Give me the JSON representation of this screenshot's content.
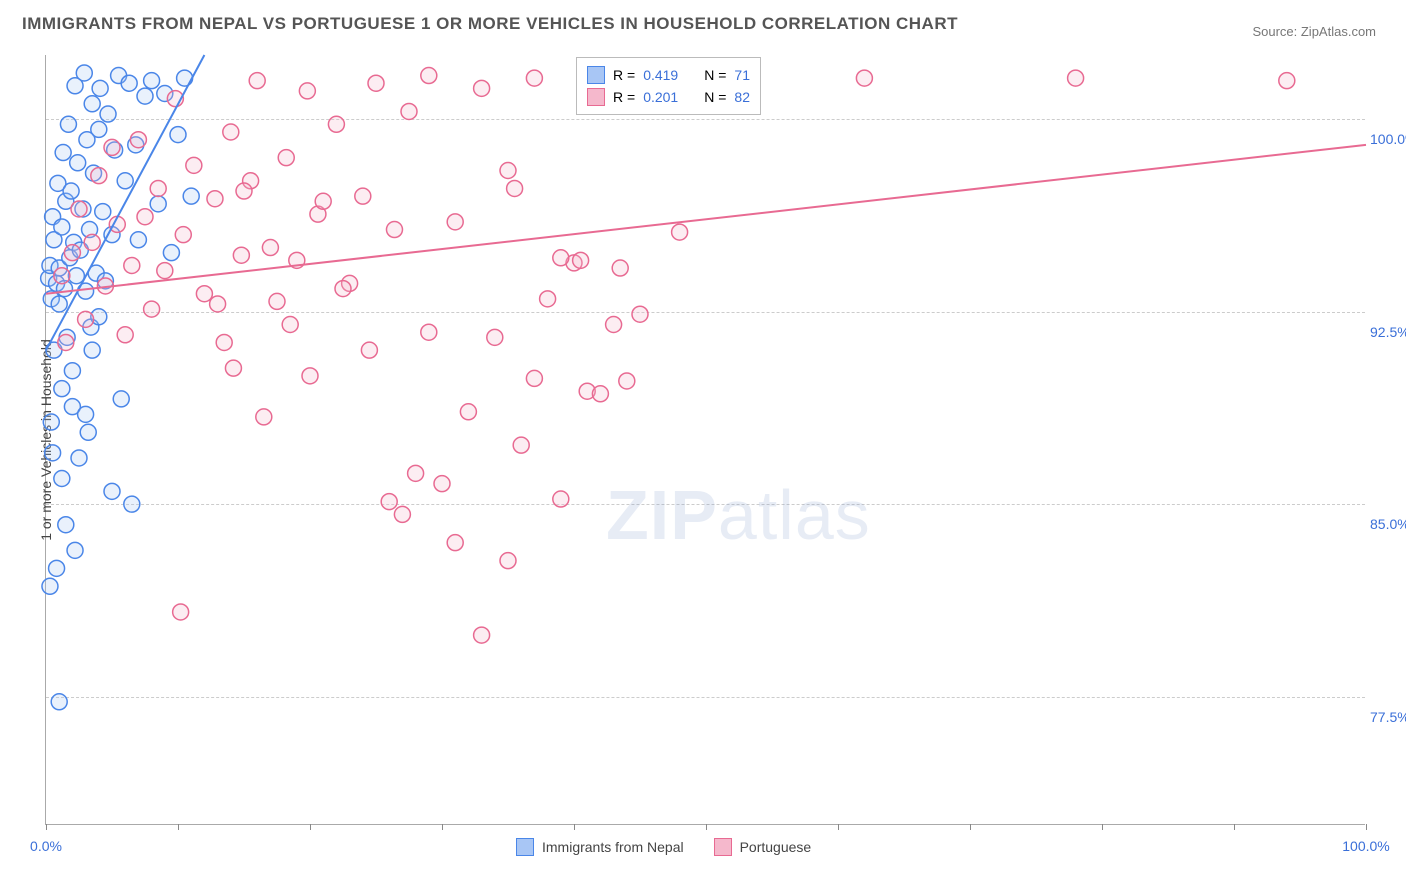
{
  "title": "IMMIGRANTS FROM NEPAL VS PORTUGUESE 1 OR MORE VEHICLES IN HOUSEHOLD CORRELATION CHART",
  "source": "Source: ZipAtlas.com",
  "watermark": {
    "bold": "ZIP",
    "light": "atlas"
  },
  "chart": {
    "type": "scatter",
    "ylabel": "1 or more Vehicles in Household",
    "xlim": [
      0,
      100
    ],
    "ylim": [
      72.5,
      102.5
    ],
    "x_ticks": [
      0,
      10,
      20,
      30,
      40,
      50,
      60,
      70,
      80,
      90,
      100
    ],
    "x_tick_labels": {
      "0": "0.0%",
      "100": "100.0%"
    },
    "y_gridlines": [
      77.5,
      85.0,
      92.5,
      100.0
    ],
    "y_tick_labels": [
      "77.5%",
      "85.0%",
      "92.5%",
      "100.0%"
    ],
    "grid_color": "#cccccc",
    "axis_color": "#aaaaaa",
    "tick_label_color": "#3a6fd8",
    "background_color": "#ffffff",
    "marker_radius": 8,
    "marker_stroke_width": 1.5,
    "marker_fill_opacity": 0.25,
    "line_width": 2,
    "series": [
      {
        "name": "Immigrants from Nepal",
        "color_stroke": "#4a86e8",
        "color_fill": "#a8c6f5",
        "R": 0.419,
        "N": 71,
        "trend": {
          "x1": 0,
          "y1": 91.0,
          "x2": 12,
          "y2": 102.5
        },
        "points": [
          [
            0.2,
            93.8
          ],
          [
            0.3,
            94.3
          ],
          [
            0.4,
            93.0
          ],
          [
            0.5,
            96.2
          ],
          [
            0.6,
            95.3
          ],
          [
            0.6,
            91.0
          ],
          [
            0.8,
            93.6
          ],
          [
            0.9,
            97.5
          ],
          [
            1.0,
            94.2
          ],
          [
            1.0,
            92.8
          ],
          [
            1.2,
            95.8
          ],
          [
            1.2,
            89.5
          ],
          [
            1.3,
            98.7
          ],
          [
            1.4,
            93.4
          ],
          [
            1.5,
            96.8
          ],
          [
            1.6,
            91.5
          ],
          [
            1.7,
            99.8
          ],
          [
            1.8,
            94.6
          ],
          [
            1.9,
            97.2
          ],
          [
            2.0,
            90.2
          ],
          [
            2.1,
            95.2
          ],
          [
            2.2,
            101.3
          ],
          [
            2.3,
            93.9
          ],
          [
            2.4,
            98.3
          ],
          [
            2.5,
            86.8
          ],
          [
            2.6,
            94.9
          ],
          [
            2.8,
            96.5
          ],
          [
            2.9,
            101.8
          ],
          [
            3.0,
            93.3
          ],
          [
            3.1,
            99.2
          ],
          [
            3.2,
            87.8
          ],
          [
            3.3,
            95.7
          ],
          [
            3.4,
            91.9
          ],
          [
            3.5,
            100.6
          ],
          [
            3.6,
            97.9
          ],
          [
            3.8,
            94.0
          ],
          [
            4.0,
            99.6
          ],
          [
            4.1,
            101.2
          ],
          [
            4.3,
            96.4
          ],
          [
            4.5,
            93.7
          ],
          [
            4.7,
            100.2
          ],
          [
            5.0,
            95.5
          ],
          [
            5.0,
            85.5
          ],
          [
            5.2,
            98.8
          ],
          [
            5.5,
            101.7
          ],
          [
            5.7,
            89.1
          ],
          [
            6.0,
            97.6
          ],
          [
            6.3,
            101.4
          ],
          [
            6.5,
            85.0
          ],
          [
            6.8,
            99.0
          ],
          [
            7.0,
            95.3
          ],
          [
            7.5,
            100.9
          ],
          [
            8.0,
            101.5
          ],
          [
            8.5,
            96.7
          ],
          [
            9.0,
            101.0
          ],
          [
            9.5,
            94.8
          ],
          [
            10.0,
            99.4
          ],
          [
            10.5,
            101.6
          ],
          [
            11.0,
            97.0
          ],
          [
            0.3,
            81.8
          ],
          [
            0.4,
            88.2
          ],
          [
            0.5,
            87.0
          ],
          [
            0.8,
            82.5
          ],
          [
            1.0,
            77.3
          ],
          [
            1.2,
            86.0
          ],
          [
            1.5,
            84.2
          ],
          [
            2.0,
            88.8
          ],
          [
            2.2,
            83.2
          ],
          [
            3.0,
            88.5
          ],
          [
            3.5,
            91.0
          ],
          [
            4.0,
            92.3
          ]
        ]
      },
      {
        "name": "Portuguese",
        "color_stroke": "#e86a92",
        "color_fill": "#f5b8cc",
        "R": 0.201,
        "N": 82,
        "trend": {
          "x1": 0,
          "y1": 93.2,
          "x2": 100,
          "y2": 99.0
        },
        "points": [
          [
            1.2,
            93.9
          ],
          [
            1.5,
            91.3
          ],
          [
            2.0,
            94.8
          ],
          [
            2.5,
            96.5
          ],
          [
            3.0,
            92.2
          ],
          [
            3.5,
            95.2
          ],
          [
            4.0,
            97.8
          ],
          [
            4.5,
            93.5
          ],
          [
            5.0,
            98.9
          ],
          [
            5.4,
            95.9
          ],
          [
            6.0,
            91.6
          ],
          [
            6.5,
            94.3
          ],
          [
            7.0,
            99.2
          ],
          [
            7.5,
            96.2
          ],
          [
            8.0,
            92.6
          ],
          [
            8.5,
            97.3
          ],
          [
            9.0,
            94.1
          ],
          [
            9.8,
            100.8
          ],
          [
            10.4,
            95.5
          ],
          [
            11.2,
            98.2
          ],
          [
            12.0,
            93.2
          ],
          [
            12.8,
            96.9
          ],
          [
            13.5,
            91.3
          ],
          [
            14.0,
            99.5
          ],
          [
            14.8,
            94.7
          ],
          [
            15.5,
            97.6
          ],
          [
            16.0,
            101.5
          ],
          [
            17.0,
            95.0
          ],
          [
            17.5,
            92.9
          ],
          [
            18.2,
            98.5
          ],
          [
            19.0,
            94.5
          ],
          [
            19.8,
            101.1
          ],
          [
            20.6,
            96.3
          ],
          [
            22.0,
            99.8
          ],
          [
            23.0,
            93.6
          ],
          [
            24.0,
            97.0
          ],
          [
            25.0,
            101.4
          ],
          [
            26.4,
            95.7
          ],
          [
            27.5,
            100.3
          ],
          [
            29.0,
            101.7
          ],
          [
            31.0,
            96.0
          ],
          [
            33.0,
            101.2
          ],
          [
            35.0,
            98.0
          ],
          [
            37.0,
            101.6
          ],
          [
            38.0,
            93.0
          ],
          [
            40.0,
            94.4
          ],
          [
            44.0,
            89.8
          ],
          [
            45.0,
            92.4
          ],
          [
            46.0,
            101.5
          ],
          [
            48.0,
            95.6
          ],
          [
            62.0,
            101.6
          ],
          [
            78.0,
            101.6
          ],
          [
            94.0,
            101.5
          ],
          [
            10.2,
            80.8
          ],
          [
            13.0,
            92.8
          ],
          [
            14.2,
            90.3
          ],
          [
            15.0,
            97.2
          ],
          [
            16.5,
            88.4
          ],
          [
            18.5,
            92.0
          ],
          [
            20.0,
            90.0
          ],
          [
            21.0,
            96.8
          ],
          [
            22.5,
            93.4
          ],
          [
            24.5,
            91.0
          ],
          [
            26.0,
            85.1
          ],
          [
            27.0,
            84.6
          ],
          [
            28.0,
            86.2
          ],
          [
            29.0,
            91.7
          ],
          [
            30.0,
            85.8
          ],
          [
            31.0,
            83.5
          ],
          [
            32.0,
            88.6
          ],
          [
            33.0,
            79.9
          ],
          [
            34.0,
            91.5
          ],
          [
            35.0,
            82.8
          ],
          [
            36.0,
            87.3
          ],
          [
            37.0,
            89.9
          ],
          [
            39.0,
            85.2
          ],
          [
            41.0,
            89.4
          ],
          [
            42.0,
            89.3
          ],
          [
            43.0,
            92.0
          ],
          [
            43.5,
            94.2
          ],
          [
            40.5,
            94.5
          ],
          [
            39.0,
            94.6
          ],
          [
            35.5,
            97.3
          ]
        ]
      }
    ],
    "legend_top": {
      "R_label": "R =",
      "N_label": "N ="
    },
    "legend_bottom_labels": [
      "Immigrants from Nepal",
      "Portuguese"
    ]
  }
}
